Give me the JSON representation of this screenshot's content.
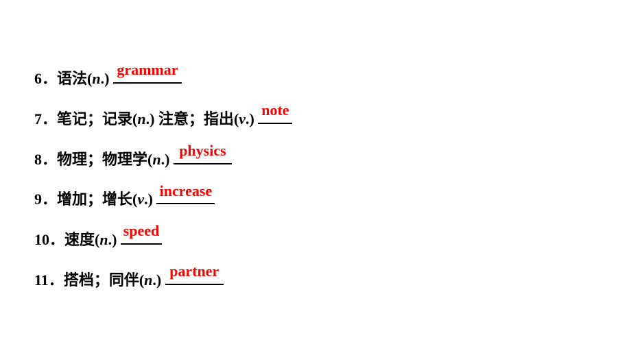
{
  "items": [
    {
      "num": "6",
      "text": "语法",
      "pos_parts": [
        {
          "p": "n",
          "d": "."
        }
      ],
      "answer": "grammar",
      "blank_width": 100,
      "trailing": []
    },
    {
      "num": "7",
      "text": "笔记；记录",
      "pos_parts": [
        {
          "p": "n",
          "d": "."
        }
      ],
      "answer": "note",
      "blank_width": 50,
      "trailing": [
        {
          "text": "注意；指出",
          "pos_parts": [
            {
              "p": "v",
              "d": "."
            }
          ]
        }
      ]
    },
    {
      "num": "8",
      "text": "物理；物理学",
      "pos_parts": [
        {
          "p": "n",
          "d": "."
        }
      ],
      "answer": "physics",
      "blank_width": 85,
      "trailing": []
    },
    {
      "num": "9",
      "text": "增加；增长",
      "pos_parts": [
        {
          "p": "v",
          "d": "."
        }
      ],
      "answer": "increase",
      "blank_width": 85,
      "trailing": []
    },
    {
      "num": "10",
      "text": "速度",
      "pos_parts": [
        {
          "p": "n",
          "d": "."
        }
      ],
      "answer": "speed",
      "blank_width": 60,
      "trailing": []
    },
    {
      "num": "11",
      "text": "搭档；同伴",
      "pos_parts": [
        {
          "p": "n",
          "d": "."
        }
      ],
      "answer": "partner",
      "blank_width": 85,
      "trailing": []
    }
  ],
  "colors": {
    "answer": "#ff0000",
    "text": "#000000",
    "background": "#ffffff"
  },
  "font_size": 22
}
